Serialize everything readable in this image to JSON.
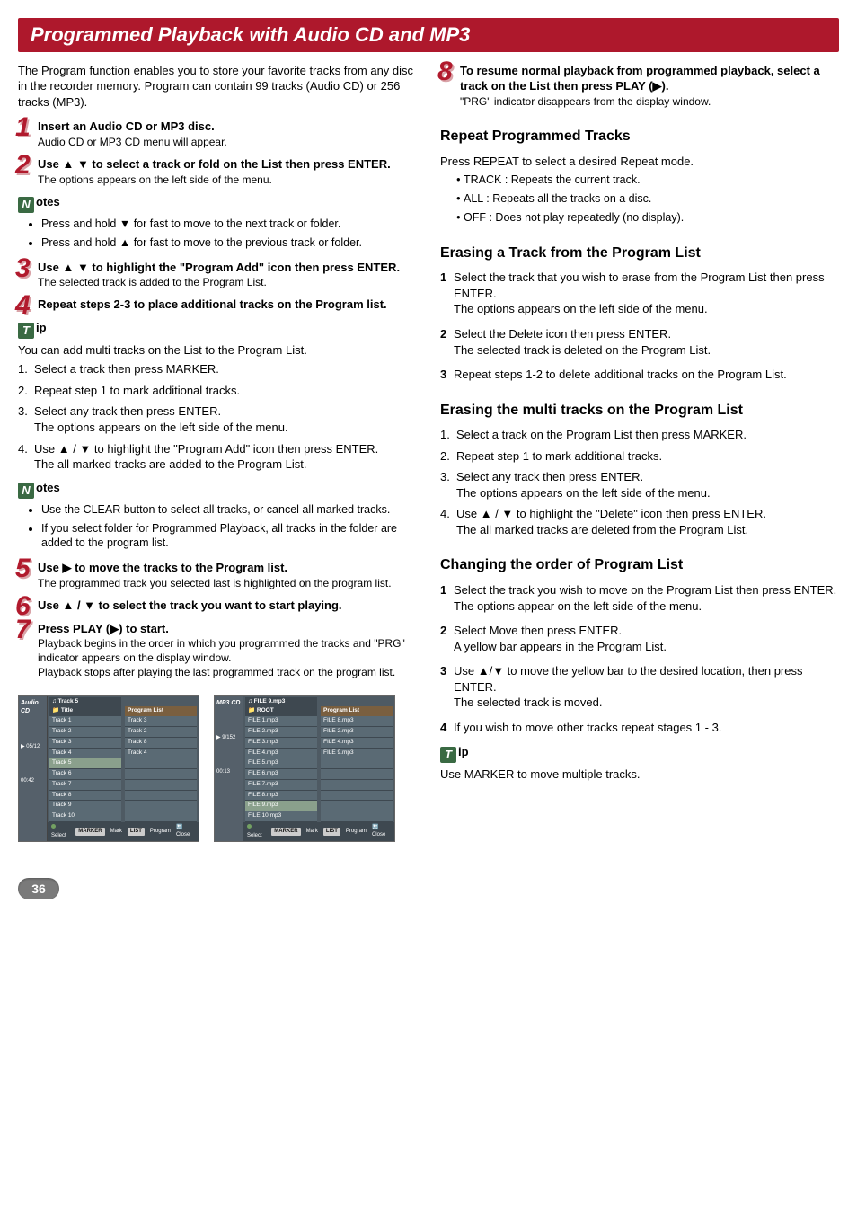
{
  "page_title": "Programmed Playback with Audio CD and MP3",
  "intro": "The Program function enables you to store your favorite tracks from any disc in the recorder memory. Program can contain 99 tracks (Audio CD) or 256 tracks (MP3).",
  "steps_left": [
    {
      "n": "1",
      "title": "Insert an Audio CD or MP3 disc.",
      "sub": "Audio CD or MP3 CD menu will appear."
    },
    {
      "n": "2",
      "title": "Use ▲ ▼ to select a track or fold on the List then press ENTER.",
      "sub": "The options appears on the left side of the menu."
    }
  ],
  "notes_label": "otes",
  "notes_letter": "N",
  "notes1": [
    "Press and hold ▼ for fast to move to the next track or folder.",
    "Press and hold ▲ for fast to move to the previous track or folder."
  ],
  "steps_left2": [
    {
      "n": "3",
      "title": "Use ▲ ▼ to highlight the \"Program Add\" icon then press ENTER.",
      "sub": "The selected track is added to the Program List."
    },
    {
      "n": "4",
      "title": "Repeat steps 2-3 to place additional tracks on the Program list.",
      "sub": ""
    }
  ],
  "tip_label": "ip",
  "tip_letter": "T",
  "tip1_intro": "You can add multi tracks on the List to the Program List.",
  "tip1_steps": [
    {
      "n": "1.",
      "t": "Select a track then press MARKER."
    },
    {
      "n": "2.",
      "t": "Repeat step 1 to mark additional tracks."
    },
    {
      "n": "3.",
      "t": "Select any track then press ENTER.",
      "extra": "The options appears on the left side of the menu."
    },
    {
      "n": "4.",
      "t": "Use ▲ / ▼ to highlight the \"Program Add\" icon then press ENTER.",
      "extra": "The all marked tracks are added to the Program List."
    }
  ],
  "notes2": [
    "Use the CLEAR button to select all tracks, or cancel all marked tracks.",
    "If you select folder for Programmed Playback, all tracks in the folder are added to the program list."
  ],
  "steps_left3": [
    {
      "n": "5",
      "title": "Use ▶ to move the tracks to the Program list.",
      "sub": "The programmed track you selected last is highlighted on the program list."
    },
    {
      "n": "6",
      "title": "Use ▲ / ▼ to select the track you want to start playing.",
      "sub": ""
    },
    {
      "n": "7",
      "title": "Press PLAY (▶) to start.",
      "sub": "Playback begins in the order in which you programmed the tracks and \"PRG\" indicator appears on the display window.",
      "sub2": "Playback stops after playing the last programmed track on the program list."
    }
  ],
  "step8": {
    "n": "8",
    "title": "To resume normal playback from programmed playback, select a track on the List then press PLAY (▶).",
    "sub": "\"PRG\" indicator disappears from the display window."
  },
  "repeat_h": "Repeat Programmed Tracks",
  "repeat_intro": "Press REPEAT to select a desired Repeat mode.",
  "repeat_modes": [
    "TRACK : Repeats the current track.",
    "ALL : Repeats all the tracks on a disc.",
    "OFF : Does not play repeatedly (no display)."
  ],
  "erase_h": "Erasing a Track from the Program List",
  "erase_steps": [
    {
      "n": "1",
      "t": "Select the track that you wish to erase from the Program List then press ENTER.",
      "extra": "The options appears on the left side of the menu."
    },
    {
      "n": "2",
      "t": "Select the Delete icon then press ENTER.",
      "extra": "The selected track is deleted on the Program List."
    },
    {
      "n": "3",
      "t": "Repeat steps 1-2 to delete additional tracks on the Program List."
    }
  ],
  "erase_multi_h": "Erasing the multi tracks on the Program List",
  "erase_multi_steps": [
    {
      "n": "1.",
      "t": "Select a track on the Program List then press MARKER."
    },
    {
      "n": "2.",
      "t": "Repeat step 1 to mark additional tracks."
    },
    {
      "n": "3.",
      "t": "Select any track then press ENTER.",
      "extra": "The options appears on the left side of the menu."
    },
    {
      "n": "4.",
      "t": "Use ▲ / ▼ to highlight the \"Delete\" icon then press ENTER.",
      "extra": "The all marked tracks are deleted from the Program List."
    }
  ],
  "change_h": "Changing the order of Program List",
  "change_steps": [
    {
      "n": "1",
      "t": "Select the track you wish to move on the Program List then press ENTER.",
      "extra": "The options appear on the left side of the menu."
    },
    {
      "n": "2",
      "t": "Select Move then press ENTER.",
      "extra": "A yellow bar appears in the Program List."
    },
    {
      "n": "3",
      "t": "Use ▲/▼ to move the yellow bar to the desired location, then press ENTER.",
      "extra": "The selected track is moved."
    },
    {
      "n": "4",
      "t": "If you wish to move other tracks repeat stages 1 - 3."
    }
  ],
  "tip2": "Use MARKER to move multiple tracks.",
  "page_number": "36",
  "thumb_audio": {
    "side_label": "Audio CD",
    "counter": "05/12",
    "time": "00:42",
    "title_hdr": "Title",
    "current": "♫ Track 5",
    "list": [
      "Track 1",
      "Track 2",
      "Track 3",
      "Track 4",
      "Track 5",
      "Track 6",
      "Track 7",
      "Track 8",
      "Track 9",
      "Track 10"
    ],
    "pl_hdr": "Program List",
    "pl": [
      "Track 3",
      "Track 2",
      "Track 8",
      "Track 4"
    ],
    "foot_select": "Select",
    "foot_marker": "MARKER",
    "foot_mark": "Mark",
    "foot_list": "LIST",
    "foot_program": "Program",
    "foot_close": "Close"
  },
  "thumb_mp3": {
    "side_label": "MP3 CD",
    "counter": "9/152",
    "time": "00:13",
    "title_hdr": "ROOT",
    "current": "♫ FILE 9.mp3",
    "list": [
      "FILE 1.mp3",
      "FILE 2.mp3",
      "FILE 3.mp3",
      "FILE 4.mp3",
      "FILE 5.mp3",
      "FILE 6.mp3",
      "FILE 7.mp3",
      "FILE 8.mp3",
      "FILE 9.mp3",
      "FILE 10.mp3"
    ],
    "pl_hdr": "Program List",
    "pl": [
      "FILE 8.mp3",
      "FILE 2.mp3",
      "FILE 4.mp3",
      "FILE 9.mp3"
    ],
    "foot_select": "Select",
    "foot_marker": "MARKER",
    "foot_mark": "Mark",
    "foot_list": "LIST",
    "foot_program": "Program",
    "foot_close": "Close"
  }
}
